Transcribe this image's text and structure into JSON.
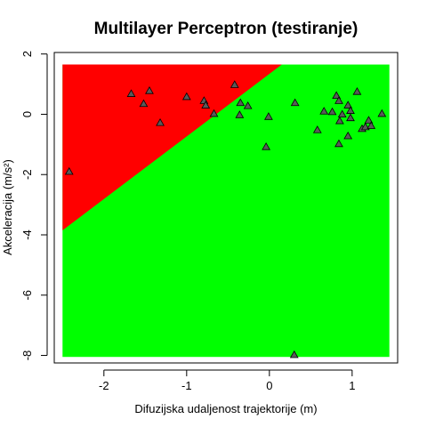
{
  "chart_data": {
    "type": "scatter",
    "title": "Multilayer Perceptron (testiranje)",
    "xlabel": "Difuzijska udaljenost trajektorije (m)",
    "ylabel": "Akceleracija (m/s²)",
    "xlim": [
      -2.6,
      1.55
    ],
    "ylim": [
      -8.25,
      2.05
    ],
    "xticks": [
      -2,
      -1,
      0,
      1
    ],
    "yticks": [
      2,
      0,
      -2,
      -4,
      -6,
      -8
    ],
    "xtick_labels": [
      "-2",
      "-1",
      "0",
      "1"
    ],
    "ytick_labels": [
      "2",
      "0",
      "-2",
      "-4",
      "-6",
      "-8"
    ],
    "region_extent": {
      "x": [
        -2.5,
        1.45
      ],
      "y": [
        -8.05,
        1.65
      ]
    },
    "decision_boundary": [
      [
        -2.5,
        -3.85
      ],
      [
        0.15,
        1.65
      ]
    ],
    "regions": [
      {
        "class": "upper-left",
        "color": "#ff0000"
      },
      {
        "class": "lower-right",
        "color": "#00ff00"
      }
    ],
    "marker": {
      "shape": "triangle",
      "fill": "#5a5a5a",
      "stroke": "#000000"
    },
    "points": [
      [
        -2.42,
        -1.9
      ],
      [
        -1.67,
        0.68
      ],
      [
        -1.52,
        0.35
      ],
      [
        -1.45,
        0.78
      ],
      [
        -1.32,
        -0.28
      ],
      [
        -1.0,
        0.58
      ],
      [
        -0.79,
        0.45
      ],
      [
        -0.77,
        0.3
      ],
      [
        -0.67,
        0.02
      ],
      [
        -0.42,
        0.98
      ],
      [
        -0.35,
        0.38
      ],
      [
        -0.36,
        -0.02
      ],
      [
        -0.26,
        0.28
      ],
      [
        -0.04,
        -1.08
      ],
      [
        -0.01,
        -0.08
      ],
      [
        0.31,
        0.38
      ],
      [
        0.3,
        -7.98
      ],
      [
        0.58,
        -0.52
      ],
      [
        0.66,
        0.1
      ],
      [
        0.76,
        0.08
      ],
      [
        0.81,
        0.62
      ],
      [
        0.84,
        0.45
      ],
      [
        0.85,
        -0.22
      ],
      [
        0.84,
        -0.98
      ],
      [
        0.88,
        0.0
      ],
      [
        0.95,
        0.3
      ],
      [
        0.95,
        -0.72
      ],
      [
        0.98,
        0.12
      ],
      [
        0.98,
        -0.12
      ],
      [
        1.06,
        0.75
      ],
      [
        1.12,
        -0.48
      ],
      [
        1.16,
        -0.42
      ],
      [
        1.2,
        -0.2
      ],
      [
        1.23,
        -0.38
      ],
      [
        1.36,
        0.02
      ]
    ]
  }
}
